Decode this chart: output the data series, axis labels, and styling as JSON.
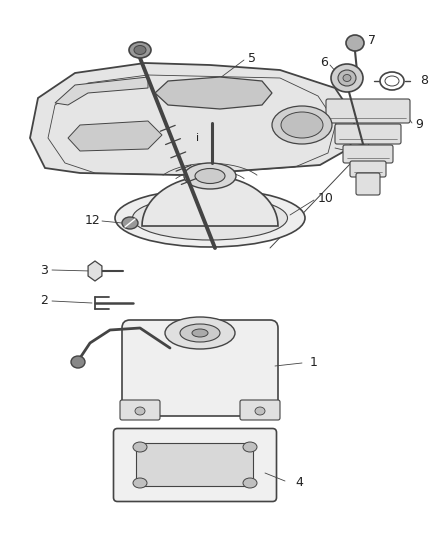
{
  "bg_color": "#ffffff",
  "line_color": "#444444",
  "label_color": "#222222",
  "figsize": [
    4.38,
    5.33
  ],
  "dpi": 100
}
